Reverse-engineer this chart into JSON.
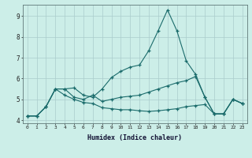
{
  "xlabel": "Humidex (Indice chaleur)",
  "bg_color": "#cceee8",
  "grid_color": "#aacccc",
  "line_color": "#1a6b6b",
  "xlim": [
    -0.5,
    23.5
  ],
  "ylim": [
    3.85,
    9.55
  ],
  "yticks": [
    4,
    5,
    6,
    7,
    8,
    9
  ],
  "xticks": [
    0,
    1,
    2,
    3,
    4,
    5,
    6,
    7,
    8,
    9,
    10,
    11,
    12,
    13,
    14,
    15,
    16,
    17,
    18,
    19,
    20,
    21,
    22,
    23
  ],
  "series1_x": [
    0,
    1,
    2,
    3,
    4,
    5,
    6,
    7,
    8,
    9,
    10,
    11,
    12,
    13,
    14,
    15,
    16,
    17,
    18,
    19,
    20,
    21,
    22,
    23
  ],
  "series1_y": [
    4.2,
    4.2,
    4.65,
    5.5,
    5.5,
    5.55,
    5.2,
    5.1,
    5.5,
    6.05,
    6.35,
    6.55,
    6.65,
    7.35,
    8.3,
    9.3,
    8.3,
    6.85,
    6.2,
    5.1,
    4.3,
    4.3,
    5.0,
    4.8
  ],
  "series2_x": [
    0,
    1,
    2,
    3,
    4,
    5,
    6,
    7,
    8,
    9,
    10,
    11,
    12,
    13,
    14,
    15,
    16,
    17,
    18,
    19,
    20,
    21,
    22,
    23
  ],
  "series2_y": [
    4.2,
    4.2,
    4.65,
    5.5,
    5.5,
    5.1,
    5.0,
    5.2,
    4.9,
    5.0,
    5.1,
    5.15,
    5.2,
    5.35,
    5.5,
    5.65,
    5.8,
    5.9,
    6.1,
    5.1,
    4.3,
    4.3,
    5.0,
    4.8
  ],
  "series3_x": [
    0,
    1,
    2,
    3,
    4,
    5,
    6,
    7,
    8,
    9,
    10,
    11,
    12,
    13,
    14,
    15,
    16,
    17,
    18,
    19,
    20,
    21,
    22,
    23
  ],
  "series3_y": [
    4.2,
    4.2,
    4.65,
    5.5,
    5.2,
    5.0,
    4.85,
    4.8,
    4.6,
    4.55,
    4.5,
    4.5,
    4.45,
    4.42,
    4.45,
    4.5,
    4.55,
    4.65,
    4.7,
    4.75,
    4.3,
    4.3,
    5.0,
    4.8
  ]
}
